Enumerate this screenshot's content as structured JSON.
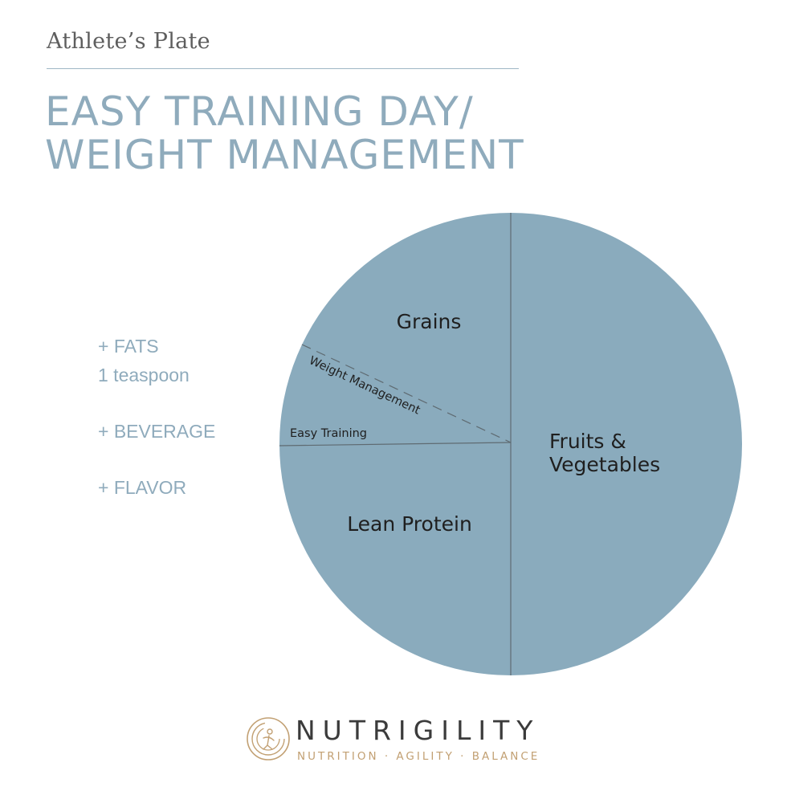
{
  "header": {
    "subtitle": "Athlete’s Plate",
    "title_line1": "EASY TRAINING DAY/",
    "title_line2": "WEIGHT MANAGEMENT"
  },
  "extras": [
    {
      "label": "+ FATS"
    },
    {
      "label": "1 teaspoon"
    },
    {
      "label": "+ BEVERAGE"
    },
    {
      "label": "+ FLAVOR"
    }
  ],
  "plate": {
    "sections": {
      "grains": "Grains",
      "fruits_line1": "Fruits &",
      "fruits_line2": "Vegetables",
      "protein": "Lean Protein"
    },
    "divider_labels": {
      "weight_management": "Weight Management",
      "easy_training": "Easy Training"
    },
    "colors": {
      "fill": "#8aabbd",
      "divider": "#5f6b72"
    }
  },
  "brand": {
    "name": "NUTRIGILITY",
    "tagline": "NUTRITION · AGILITY · BALANCE",
    "name_color": "#3b3b3b",
    "accent_color": "#c2a073"
  }
}
